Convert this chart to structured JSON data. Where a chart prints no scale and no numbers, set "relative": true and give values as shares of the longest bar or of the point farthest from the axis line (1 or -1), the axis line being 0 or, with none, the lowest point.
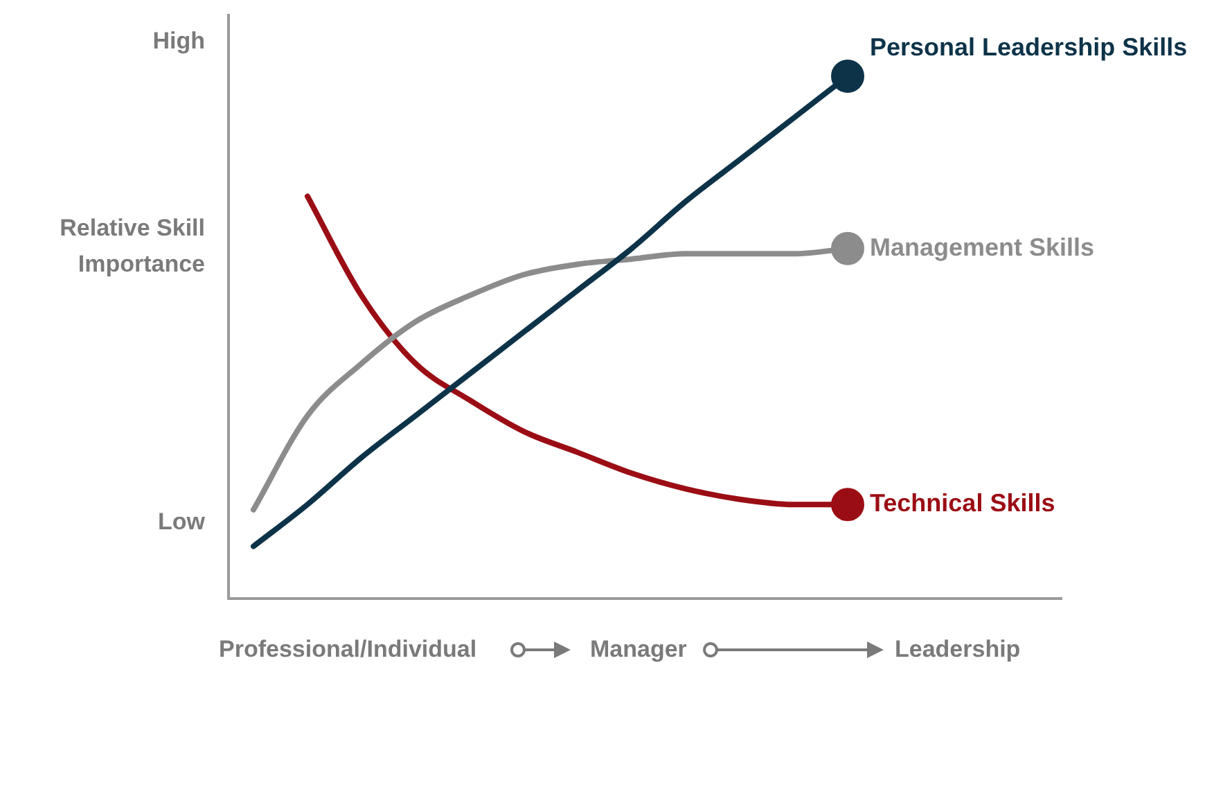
{
  "chart_data": {
    "type": "line",
    "relative": true,
    "ylabel": "Relative Skill Importance",
    "categories": [
      null,
      null,
      null,
      null,
      null,
      null,
      null,
      null,
      null,
      null,
      null,
      null
    ],
    "series": [
      {
        "name": "Personal Leadership Skills",
        "color": "#0d3349",
        "values": [
          0.1,
          0.18,
          0.27,
          0.35,
          0.43,
          0.51,
          0.59,
          0.67,
          0.76,
          0.84,
          0.92,
          1.0
        ]
      },
      {
        "name": "Management Skills",
        "color": "#8c8c8c",
        "values": [
          0.17,
          0.35,
          0.45,
          0.53,
          0.58,
          0.62,
          0.64,
          0.65,
          0.66,
          0.66,
          0.66,
          0.67
        ]
      },
      {
        "name": "Technical Skills",
        "color": "#9b0d14",
        "values": [
          null,
          0.77,
          0.58,
          0.45,
          0.38,
          0.32,
          0.28,
          0.24,
          0.21,
          0.19,
          0.18,
          0.18
        ]
      }
    ],
    "annotations": [
      "High",
      "Low",
      "Professional/Individual",
      "Manager",
      "Leadership"
    ],
    "legend": false,
    "grid": false,
    "line_style": "solid"
  }
}
